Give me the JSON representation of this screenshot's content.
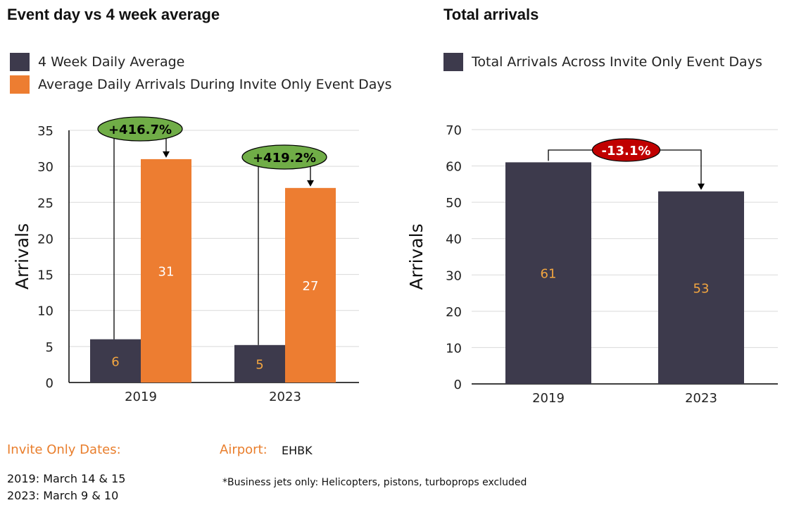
{
  "colors": {
    "dark": "#3d3a4c",
    "orange": "#ed7d31",
    "green_badge": "#70ad47",
    "red_badge": "#c00000",
    "grid": "#d9d9d9",
    "label_orange": "#f2a540"
  },
  "chart_data": [
    {
      "type": "bar",
      "title": "Event day vs 4 week average",
      "categories": [
        "2019",
        "2023"
      ],
      "series": [
        {
          "name": "4 Week Daily Average",
          "values": [
            6,
            5.2
          ],
          "labels": [
            "6",
            "5"
          ]
        },
        {
          "name": "Average Daily Arrivals During Invite Only Event Days",
          "values": [
            31,
            27
          ],
          "labels": [
            "31",
            "27"
          ]
        }
      ],
      "ylabel": "Arrivals",
      "ylim": [
        0,
        35
      ],
      "yticks": [
        0,
        5,
        10,
        15,
        20,
        25,
        30,
        35
      ],
      "grid": true,
      "annotations": [
        "+416.7%",
        "+419.2%"
      ]
    },
    {
      "type": "bar",
      "title": "Total arrivals",
      "categories": [
        "2019",
        "2023"
      ],
      "series": [
        {
          "name": "Total Arrivals Across Invite Only Event Days",
          "values": [
            61,
            53
          ],
          "labels": [
            "61",
            "53"
          ]
        }
      ],
      "ylabel": "Arrivals",
      "ylim": [
        0,
        70
      ],
      "yticks": [
        0,
        10,
        20,
        30,
        40,
        50,
        60,
        70
      ],
      "grid": true,
      "annotations": [
        "-13.1%"
      ]
    }
  ],
  "footer": {
    "dates_heading": "Invite Only Dates:",
    "dates_2019": "2019: March 14 & 15",
    "dates_2023": "2023: March 9 & 10",
    "airport_label": "Airport:",
    "airport_code": "EHBK",
    "note": "*Business jets only: Helicopters, pistons, turboprops excluded"
  }
}
